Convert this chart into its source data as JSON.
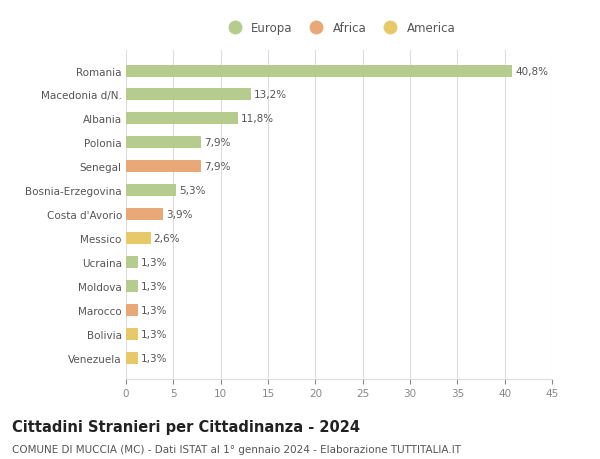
{
  "categories": [
    "Venezuela",
    "Bolivia",
    "Marocco",
    "Moldova",
    "Ucraina",
    "Messico",
    "Costa d'Avorio",
    "Bosnia-Erzegovina",
    "Senegal",
    "Polonia",
    "Albania",
    "Macedonia d/N.",
    "Romania"
  ],
  "values": [
    1.3,
    1.3,
    1.3,
    1.3,
    1.3,
    2.6,
    3.9,
    5.3,
    7.9,
    7.9,
    11.8,
    13.2,
    40.8
  ],
  "labels": [
    "1,3%",
    "1,3%",
    "1,3%",
    "1,3%",
    "1,3%",
    "2,6%",
    "3,9%",
    "5,3%",
    "7,9%",
    "7,9%",
    "11,8%",
    "13,2%",
    "40,8%"
  ],
  "colors": [
    "#e8c96a",
    "#e8c96a",
    "#e8a878",
    "#b5cc8e",
    "#b5cc8e",
    "#e8c96a",
    "#e8a878",
    "#b5cc8e",
    "#e8a878",
    "#b5cc8e",
    "#b5cc8e",
    "#b5cc8e",
    "#b5cc8e"
  ],
  "continents": [
    "America",
    "America",
    "Africa",
    "Europa",
    "Europa",
    "America",
    "Africa",
    "Europa",
    "Africa",
    "Europa",
    "Europa",
    "Europa",
    "Europa"
  ],
  "legend_labels": [
    "Europa",
    "Africa",
    "America"
  ],
  "legend_colors": [
    "#b5cc8e",
    "#e8a878",
    "#e8c96a"
  ],
  "title": "Cittadini Stranieri per Cittadinanza - 2024",
  "subtitle": "COMUNE DI MUCCIA (MC) - Dati ISTAT al 1° gennaio 2024 - Elaborazione TUTTITALIA.IT",
  "xlim": [
    0,
    45
  ],
  "xticks": [
    0,
    5,
    10,
    15,
    20,
    25,
    30,
    35,
    40,
    45
  ],
  "bg_color": "#ffffff",
  "grid_color": "#dddddd",
  "bar_height": 0.5,
  "title_fontsize": 10.5,
  "subtitle_fontsize": 7.5,
  "label_fontsize": 7.5,
  "tick_fontsize": 7.5,
  "legend_fontsize": 8.5
}
